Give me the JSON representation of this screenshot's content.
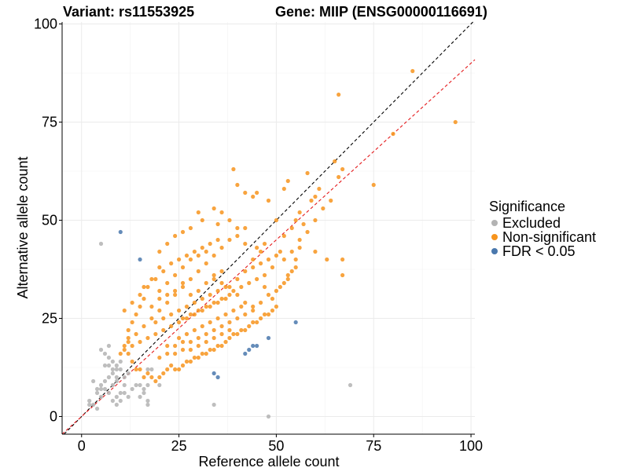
{
  "chart_data": {
    "type": "scatter",
    "title_left": "Variant: rs11553925",
    "title_right": "Gene: MIIP (ENSG00000116691)",
    "xlabel": "Reference allele count",
    "ylabel": "Alternative allele count",
    "xlim": [
      -5,
      101
    ],
    "ylim": [
      -4.5,
      100.5
    ],
    "x_ticks": [
      0,
      25,
      50,
      75,
      100
    ],
    "y_ticks": [
      0,
      25,
      50,
      75,
      100
    ],
    "grid": true,
    "legend": {
      "title": "Significance",
      "placement": "right",
      "entries": [
        {
          "key": "excluded",
          "label": "Excluded",
          "color": "#b3b3b3"
        },
        {
          "key": "nonsig",
          "label": "Non-significant",
          "color": "#f7941d"
        },
        {
          "key": "fdr",
          "label": "FDR < 0.05",
          "color": "#4a78ad"
        }
      ]
    },
    "reference_lines": [
      {
        "name": "identity",
        "slope": 1.0,
        "intercept": 0,
        "color": "#000000",
        "dash": "4,3"
      },
      {
        "name": "fit",
        "slope": 0.9,
        "intercept": 0,
        "color": "#e41a1c",
        "dash": "4,3"
      }
    ],
    "series": [
      {
        "key": "excluded",
        "color": "#b3b3b3",
        "points": [
          [
            5,
            44
          ],
          [
            5,
            17
          ],
          [
            6,
            13
          ],
          [
            6,
            16
          ],
          [
            6,
            9
          ],
          [
            7,
            10
          ],
          [
            7,
            6
          ],
          [
            7,
            18
          ],
          [
            7,
            15
          ],
          [
            8,
            12
          ],
          [
            8,
            8
          ],
          [
            8,
            4
          ],
          [
            8,
            14
          ],
          [
            9,
            10
          ],
          [
            9,
            9
          ],
          [
            9,
            13
          ],
          [
            9,
            3
          ],
          [
            9,
            5
          ],
          [
            10,
            12
          ],
          [
            10,
            4
          ],
          [
            10,
            6
          ],
          [
            11,
            8
          ],
          [
            11,
            6
          ],
          [
            5,
            7
          ],
          [
            5,
            5
          ],
          [
            4,
            6
          ],
          [
            3,
            3
          ],
          [
            2,
            3
          ],
          [
            2,
            4
          ],
          [
            4,
            2
          ],
          [
            4,
            7
          ],
          [
            3,
            9
          ],
          [
            13,
            7
          ],
          [
            14,
            8
          ],
          [
            15,
            8
          ],
          [
            15,
            5
          ],
          [
            16,
            7
          ],
          [
            17,
            4
          ],
          [
            17,
            8
          ],
          [
            20,
            8
          ],
          [
            18,
            12
          ],
          [
            17,
            3
          ],
          [
            17,
            12
          ],
          [
            16,
            6
          ],
          [
            12,
            5
          ],
          [
            34,
            3
          ],
          [
            48,
            0
          ],
          [
            69,
            8
          ],
          [
            5,
            8
          ],
          [
            6,
            7
          ],
          [
            7,
            13
          ],
          [
            8,
            11
          ],
          [
            9,
            12
          ],
          [
            10,
            14
          ],
          [
            11,
            10
          ],
          [
            12,
            11
          ]
        ]
      },
      {
        "key": "nonsig",
        "color": "#f7941d",
        "points": [
          [
            85,
            88
          ],
          [
            66,
            82
          ],
          [
            96,
            75
          ],
          [
            80,
            72
          ],
          [
            58,
            62
          ],
          [
            65,
            65
          ],
          [
            67,
            63
          ],
          [
            66,
            61
          ],
          [
            75,
            59
          ],
          [
            61,
            58
          ],
          [
            60,
            56
          ],
          [
            59,
            55
          ],
          [
            53,
            60
          ],
          [
            52,
            58
          ],
          [
            48,
            55
          ],
          [
            45,
            57
          ],
          [
            44,
            56
          ],
          [
            39,
            63
          ],
          [
            40,
            59
          ],
          [
            42,
            57
          ],
          [
            50,
            50
          ],
          [
            55,
            50
          ],
          [
            56,
            52
          ],
          [
            57,
            49
          ],
          [
            58,
            47
          ],
          [
            60,
            50
          ],
          [
            62,
            53
          ],
          [
            64,
            55
          ],
          [
            54,
            48
          ],
          [
            56,
            45
          ],
          [
            52,
            46
          ],
          [
            60,
            42
          ],
          [
            63,
            40
          ],
          [
            67,
            40
          ],
          [
            67,
            36
          ],
          [
            55,
            38
          ],
          [
            53,
            35
          ],
          [
            45,
            43
          ],
          [
            46,
            42
          ],
          [
            47,
            44
          ],
          [
            44,
            40
          ],
          [
            42,
            44
          ],
          [
            40,
            48
          ],
          [
            38,
            50
          ],
          [
            36,
            52
          ],
          [
            35,
            49
          ],
          [
            34,
            53
          ],
          [
            30,
            52
          ],
          [
            31,
            50
          ],
          [
            28,
            48
          ],
          [
            26,
            47
          ],
          [
            24,
            46
          ],
          [
            22,
            44
          ],
          [
            20,
            42
          ],
          [
            20,
            38
          ],
          [
            18,
            35
          ],
          [
            16,
            33
          ],
          [
            16,
            30
          ],
          [
            15,
            28
          ],
          [
            14,
            26
          ],
          [
            13,
            24
          ],
          [
            12,
            22
          ],
          [
            12,
            20
          ],
          [
            11,
            18
          ],
          [
            12,
            16
          ],
          [
            13,
            14
          ],
          [
            14,
            12
          ],
          [
            15,
            12
          ],
          [
            16,
            10
          ],
          [
            17,
            11
          ],
          [
            18,
            10
          ],
          [
            19,
            9
          ],
          [
            20,
            10
          ],
          [
            21,
            11
          ],
          [
            22,
            12
          ],
          [
            23,
            13
          ],
          [
            24,
            12
          ],
          [
            25,
            12
          ],
          [
            26,
            13
          ],
          [
            27,
            14
          ],
          [
            28,
            14
          ],
          [
            29,
            15
          ],
          [
            30,
            15
          ],
          [
            31,
            16
          ],
          [
            32,
            16
          ],
          [
            33,
            17
          ],
          [
            34,
            17
          ],
          [
            35,
            18
          ],
          [
            36,
            18
          ],
          [
            37,
            19
          ],
          [
            38,
            20
          ],
          [
            39,
            21
          ],
          [
            40,
            21
          ],
          [
            41,
            22
          ],
          [
            42,
            22
          ],
          [
            43,
            23
          ],
          [
            44,
            24
          ],
          [
            45,
            24
          ],
          [
            46,
            25
          ],
          [
            47,
            26
          ],
          [
            48,
            26
          ],
          [
            49,
            27
          ],
          [
            50,
            28
          ],
          [
            47,
            33
          ],
          [
            48,
            31
          ],
          [
            49,
            30
          ],
          [
            50,
            32
          ],
          [
            51,
            33
          ],
          [
            52,
            34
          ],
          [
            53,
            36
          ],
          [
            54,
            37
          ],
          [
            55,
            40
          ],
          [
            51,
            42
          ],
          [
            49,
            38
          ],
          [
            47,
            36
          ],
          [
            45,
            35
          ],
          [
            43,
            34
          ],
          [
            41,
            33
          ],
          [
            39,
            32
          ],
          [
            37,
            30
          ],
          [
            35,
            29
          ],
          [
            33,
            28
          ],
          [
            31,
            27
          ],
          [
            29,
            26
          ],
          [
            27,
            25
          ],
          [
            25,
            24
          ],
          [
            23,
            23
          ],
          [
            21,
            22
          ],
          [
            19,
            21
          ],
          [
            17,
            20
          ],
          [
            15,
            19
          ],
          [
            13,
            18
          ],
          [
            11,
            17
          ],
          [
            10,
            16
          ],
          [
            12,
            19
          ],
          [
            14,
            21
          ],
          [
            16,
            23
          ],
          [
            18,
            25
          ],
          [
            20,
            27
          ],
          [
            22,
            29
          ],
          [
            24,
            31
          ],
          [
            26,
            33
          ],
          [
            28,
            35
          ],
          [
            30,
            37
          ],
          [
            32,
            39
          ],
          [
            34,
            41
          ],
          [
            36,
            43
          ],
          [
            38,
            45
          ],
          [
            40,
            46
          ],
          [
            42,
            48
          ],
          [
            35,
            45
          ],
          [
            33,
            44
          ],
          [
            31,
            43
          ],
          [
            29,
            42
          ],
          [
            27,
            41
          ],
          [
            25,
            40
          ],
          [
            23,
            39
          ],
          [
            21,
            37
          ],
          [
            19,
            35
          ],
          [
            17,
            33
          ],
          [
            15,
            31
          ],
          [
            13,
            29
          ],
          [
            11,
            27
          ],
          [
            20,
            32
          ],
          [
            22,
            34
          ],
          [
            24,
            36
          ],
          [
            26,
            38
          ],
          [
            28,
            40
          ],
          [
            30,
            41
          ],
          [
            32,
            42
          ],
          [
            34,
            36
          ],
          [
            36,
            34
          ],
          [
            38,
            33
          ],
          [
            40,
            31
          ],
          [
            42,
            29
          ],
          [
            44,
            28
          ],
          [
            46,
            29
          ],
          [
            22,
            18
          ],
          [
            24,
            18
          ],
          [
            26,
            19
          ],
          [
            28,
            19
          ],
          [
            30,
            20
          ],
          [
            32,
            21
          ],
          [
            34,
            22
          ],
          [
            36,
            23
          ],
          [
            38,
            24
          ],
          [
            40,
            25
          ],
          [
            42,
            26
          ],
          [
            44,
            27
          ],
          [
            20,
            15
          ],
          [
            22,
            16
          ],
          [
            24,
            16
          ],
          [
            26,
            17
          ],
          [
            28,
            17
          ],
          [
            30,
            18
          ],
          [
            32,
            19
          ],
          [
            34,
            20
          ],
          [
            36,
            21
          ],
          [
            38,
            22
          ],
          [
            19,
            24
          ],
          [
            21,
            25
          ],
          [
            23,
            26
          ],
          [
            25,
            27
          ],
          [
            27,
            28
          ],
          [
            29,
            29
          ],
          [
            31,
            30
          ],
          [
            33,
            31
          ],
          [
            35,
            32
          ],
          [
            37,
            33
          ],
          [
            18,
            28
          ],
          [
            20,
            30
          ],
          [
            22,
            31
          ],
          [
            24,
            32
          ],
          [
            26,
            34
          ],
          [
            28,
            31
          ],
          [
            30,
            32
          ],
          [
            32,
            34
          ],
          [
            34,
            35
          ],
          [
            36,
            37
          ],
          [
            25,
            20
          ],
          [
            27,
            21
          ],
          [
            29,
            22
          ],
          [
            31,
            23
          ],
          [
            33,
            24
          ],
          [
            35,
            25
          ],
          [
            37,
            26
          ],
          [
            39,
            27
          ],
          [
            41,
            28
          ],
          [
            26,
            25
          ],
          [
            28,
            26
          ],
          [
            30,
            27
          ],
          [
            32,
            28
          ],
          [
            34,
            29
          ],
          [
            36,
            30
          ],
          [
            38,
            31
          ],
          [
            40,
            35
          ],
          [
            42,
            37
          ],
          [
            44,
            38
          ],
          [
            46,
            39
          ],
          [
            48,
            40
          ],
          [
            50,
            41
          ],
          [
            52,
            40
          ],
          [
            54,
            42
          ],
          [
            56,
            43
          ]
        ]
      },
      {
        "key": "fdr",
        "color": "#4a78ad",
        "points": [
          [
            10,
            47
          ],
          [
            15,
            40
          ],
          [
            55,
            24
          ],
          [
            48,
            20
          ],
          [
            45,
            18
          ],
          [
            44,
            18
          ],
          [
            43,
            17
          ],
          [
            42,
            16
          ],
          [
            34,
            11
          ],
          [
            35,
            10
          ]
        ]
      }
    ]
  }
}
